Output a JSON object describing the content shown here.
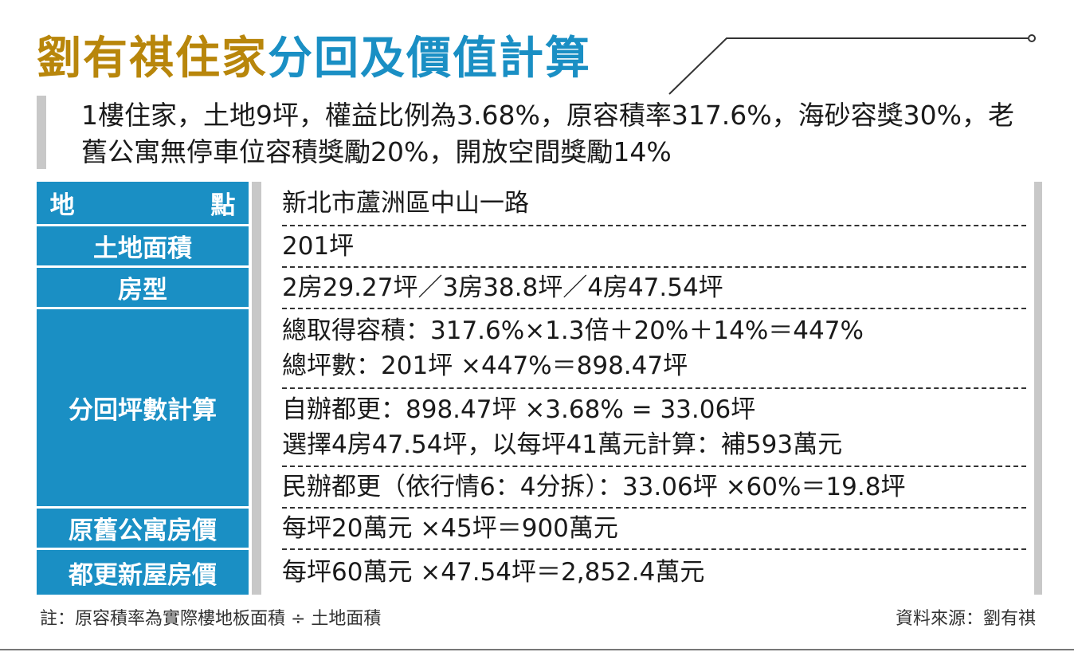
{
  "title": {
    "part1": "劉有祺住家",
    "part2": "分回及價值計算"
  },
  "colors": {
    "title_gold": "#b8860b",
    "accent_blue": "#1a8fc4",
    "bar_gray": "#c8c8c8"
  },
  "intro": "1樓住家，土地9坪，權益比例為3.68%，原容積率317.6%，海砂容獎30%，老舊公寓無停車位容積獎勵20%，開放空間獎勵14%",
  "rows": [
    {
      "label": "地 點",
      "values": [
        "新北市蘆洲區中山一路"
      ]
    },
    {
      "label": "土地面積",
      "values": [
        "201坪"
      ]
    },
    {
      "label": "房型",
      "values": [
        "2房29.27坪／3房38.8坪／4房47.54坪"
      ]
    },
    {
      "label": "分回坪數計算",
      "values": [
        "總取得容積：317.6%×1.3倍＋20%＋14%＝447%",
        "總坪數：201坪 ×447%＝898.47坪",
        "自辦都更：898.47坪 ×3.68% = 33.06坪",
        "選擇4房47.54坪，以每坪41萬元計算：補593萬元",
        "民辦都更（依行情6：4分拆）：33.06坪 ×60%＝19.8坪"
      ]
    },
    {
      "label": "原舊公寓房價",
      "values": [
        "每坪20萬元 ×45坪＝900萬元"
      ]
    },
    {
      "label": "都更新屋房價",
      "values": [
        "每坪60萬元 ×47.54坪＝2,852.4萬元"
      ]
    }
  ],
  "footer": {
    "note": "註：原容積率為實際樓地板面積 ÷ 土地面積",
    "source": "資料來源：劉有祺"
  }
}
